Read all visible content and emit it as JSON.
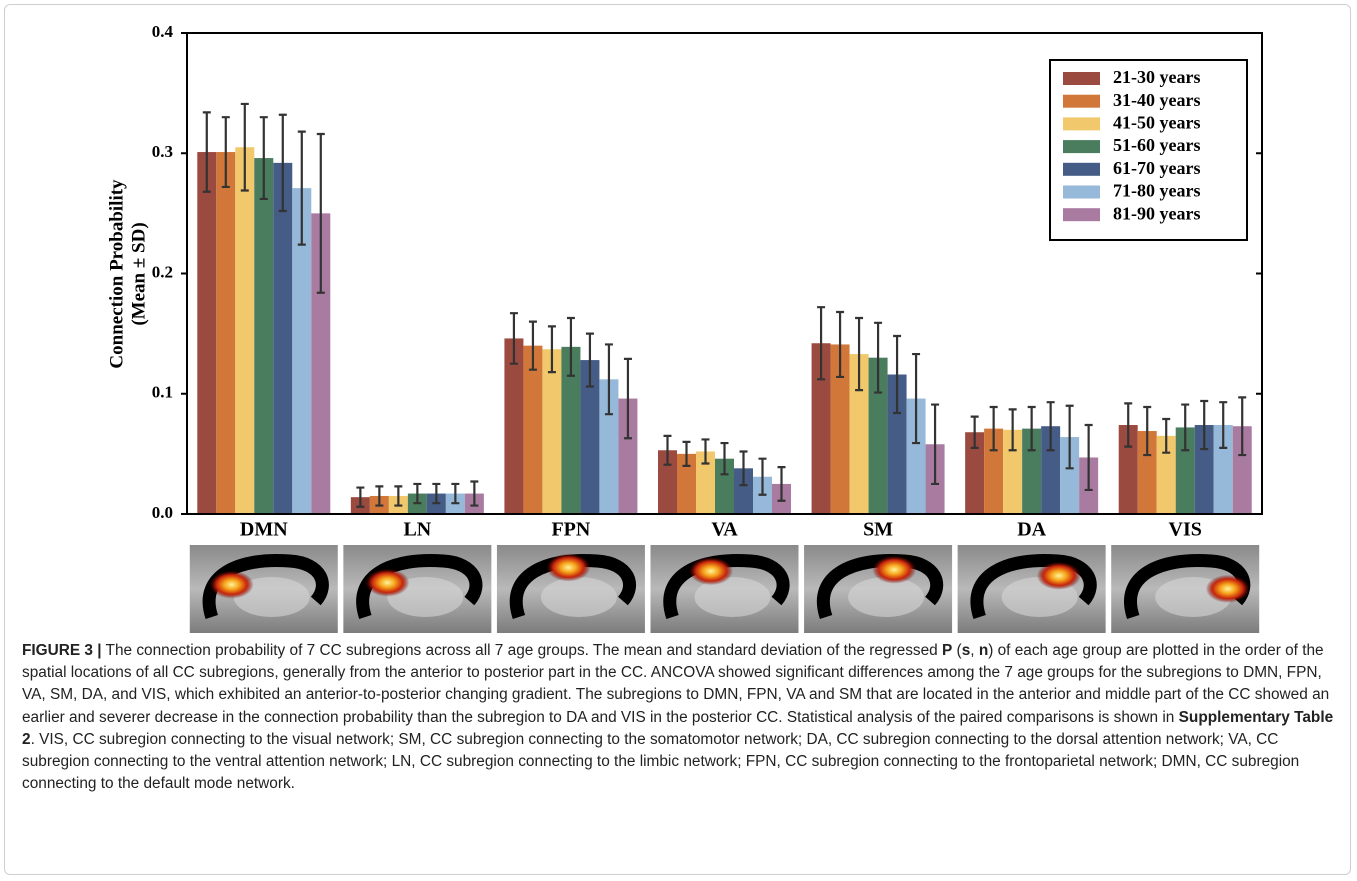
{
  "chart_data": {
    "type": "bar",
    "y_label": [
      "Connection Probability",
      "(Mean ± SD)"
    ],
    "categories": [
      "DMN",
      "LN",
      "FPN",
      "VA",
      "SM",
      "DA",
      "VIS"
    ],
    "ylim": [
      0,
      0.4
    ],
    "yticks": [
      {
        "value": 0,
        "label": "0.0"
      },
      0.1,
      0.2,
      0.3,
      0.4
    ],
    "series": [
      {
        "name": "21-30 years",
        "color": "#9b4a3f",
        "values": [
          0.301,
          0.014,
          0.146,
          0.053,
          0.142,
          0.068,
          0.074
        ],
        "errors": [
          0.033,
          0.008,
          0.021,
          0.012,
          0.03,
          0.013,
          0.018
        ]
      },
      {
        "name": "31-40 years",
        "color": "#d2773a",
        "values": [
          0.301,
          0.015,
          0.14,
          0.05,
          0.141,
          0.071,
          0.069
        ],
        "errors": [
          0.029,
          0.008,
          0.02,
          0.01,
          0.027,
          0.018,
          0.02
        ]
      },
      {
        "name": "41-50 years",
        "color": "#f1c96c",
        "values": [
          0.305,
          0.015,
          0.137,
          0.052,
          0.133,
          0.07,
          0.065
        ],
        "errors": [
          0.036,
          0.008,
          0.019,
          0.01,
          0.03,
          0.017,
          0.014
        ]
      },
      {
        "name": "51-60 years",
        "color": "#4a7c5e",
        "values": [
          0.296,
          0.017,
          0.139,
          0.046,
          0.13,
          0.071,
          0.072
        ],
        "errors": [
          0.034,
          0.008,
          0.024,
          0.013,
          0.029,
          0.018,
          0.019
        ]
      },
      {
        "name": "61-70 years",
        "color": "#445c86",
        "values": [
          0.292,
          0.017,
          0.128,
          0.038,
          0.116,
          0.073,
          0.074
        ],
        "errors": [
          0.04,
          0.008,
          0.022,
          0.014,
          0.032,
          0.02,
          0.02
        ]
      },
      {
        "name": "71-80 years",
        "color": "#96b9d9",
        "values": [
          0.271,
          0.017,
          0.112,
          0.031,
          0.096,
          0.064,
          0.074
        ],
        "errors": [
          0.047,
          0.008,
          0.029,
          0.015,
          0.037,
          0.026,
          0.019
        ]
      },
      {
        "name": "81-90 years",
        "color": "#a97ba1",
        "values": [
          0.25,
          0.017,
          0.096,
          0.025,
          0.058,
          0.047,
          0.073
        ],
        "errors": [
          0.066,
          0.01,
          0.033,
          0.014,
          0.033,
          0.027,
          0.024
        ]
      }
    ]
  },
  "caption": [
    "FIGURE 3 |",
    " The connection probability of 7 CC subregions across all 7 age groups. The mean and standard deviation of the regressed ",
    "P",
    " (",
    "s",
    ", ",
    "n",
    ") of each age group are plotted in the order of the spatial locations of all CC subregions, generally from the anterior to posterior part in the CC. ANCOVA showed significant differences among the 7 age groups for the subregions to DMN, FPN, VA, SM, DA, and VIS, which exhibited an anterior-to-posterior changing gradient. The subregions to DMN, FPN, VA and SM that are located in the anterior and middle part of the CC showed an earlier and severer decrease in the connection probability than the subregion to DA and VIS in the posterior CC. Statistical analysis of the paired comparisons is shown in ",
    "Supplementary Table 2",
    ". VIS, CC subregion connecting to the visual network; SM, CC subregion connecting to the somatomotor network; DA, CC subregion connecting to the dorsal attention network; VA, CC subregion connecting to the ventral attention network; LN, CC subregion connecting to the limbic network; FPN, CC subregion connecting to the frontoparietal network; DMN, CC subregion connecting to the default mode network."
  ]
}
